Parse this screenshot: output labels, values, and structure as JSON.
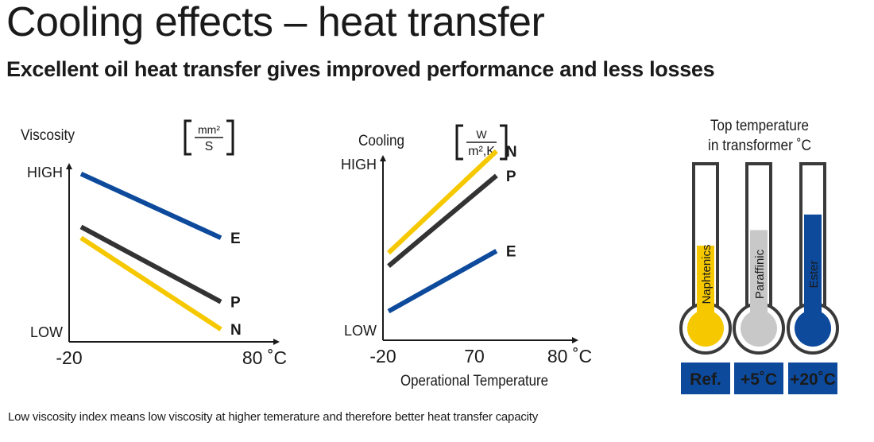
{
  "title": "Cooling effects – heat transfer",
  "subtitle": "Excellent oil heat transfer gives improved performance and less losses",
  "footnote": "Low viscosity index means low viscosity at higher temerature and therefore better heat transfer capacity",
  "chart_data": [
    {
      "type": "line",
      "ylabel": "Viscosity",
      "unit_top": "mm²",
      "unit_bottom": "S",
      "y_high_label": "HIGH",
      "y_low_label": "LOW",
      "x_tick_labels": [
        "-20",
        "80 ˚C"
      ],
      "xlim": [
        -20,
        80
      ],
      "ylim": [
        0,
        100
      ],
      "series": [
        {
          "name": "E",
          "color": "#0d4a9c",
          "x": [
            -20,
            80
          ],
          "y": [
            91,
            56
          ]
        },
        {
          "name": "P",
          "color": "#333333",
          "x": [
            -20,
            80
          ],
          "y": [
            62,
            21
          ]
        },
        {
          "name": "N",
          "color": "#f5c800",
          "x": [
            -20,
            80
          ],
          "y": [
            56,
            6
          ]
        }
      ]
    },
    {
      "type": "line",
      "ylabel": "Cooling",
      "unit_top": "W",
      "unit_bottom": "m²,K",
      "y_high_label": "HIGH",
      "y_low_label": "LOW",
      "x_tick_labels": [
        "-20",
        "70",
        "80 ˚C"
      ],
      "xlabel": "Operational Temperature",
      "xlim": [
        -20,
        100
      ],
      "ylim": [
        0,
        100
      ],
      "series": [
        {
          "name": "N",
          "color": "#f5c800",
          "x": [
            -20,
            80
          ],
          "y": [
            43,
            97
          ]
        },
        {
          "name": "P",
          "color": "#333333",
          "x": [
            -20,
            80
          ],
          "y": [
            36,
            84
          ]
        },
        {
          "name": "E",
          "color": "#0d4a9c",
          "x": [
            -20,
            80
          ],
          "y": [
            12,
            44
          ]
        }
      ]
    },
    {
      "type": "bar",
      "title_line1": "Top temperature",
      "title_line2": "in transformer ˚C",
      "categories": [
        "Naphtenics",
        "Paraffinic",
        "Ester"
      ],
      "values": [
        50,
        61,
        72
      ],
      "value_labels": [
        "Ref.",
        "+5˚C",
        "+20˚C"
      ],
      "colors": [
        "#f5c800",
        "#c8c8c8",
        "#0d4a9c"
      ],
      "label_box_color": "#0d4a9c"
    }
  ]
}
